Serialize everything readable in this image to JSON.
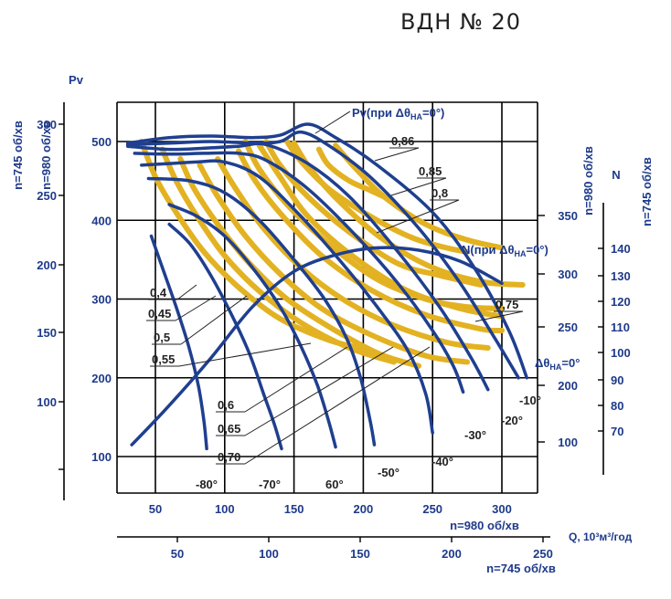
{
  "title": "ВДН  № 20",
  "colors": {
    "blue": "#1f3f8f",
    "yellow": "#e3b222",
    "grid": "#000000"
  },
  "chart_data": {
    "type": "line",
    "title": "ВДН  № 20",
    "axes": {
      "x_main": {
        "label": "n=980 об/хв",
        "ticks": [
          50,
          100,
          150,
          200,
          250,
          300
        ],
        "range": [
          25,
          320
        ]
      },
      "x_second": {
        "label": "n=745 об/хв",
        "ticks": [
          50,
          100,
          150,
          200,
          250
        ],
        "range": [
          25,
          250
        ]
      },
      "x_unit": "Q, 10³м³/год",
      "y_pv_980": {
        "label": "n=980 об/хв",
        "ticks": [
          100,
          200,
          300,
          400,
          500
        ],
        "range": [
          50,
          550
        ]
      },
      "y_pv_745": {
        "label": "n=745 об/хв",
        "ticks": [
          100,
          150,
          200,
          250,
          300
        ]
      },
      "pv_title": "Pv",
      "y_n_980": {
        "label": "n=980 об/хв",
        "ticks": [
          100,
          200,
          250,
          300,
          350
        ]
      },
      "y_n_745": {
        "label": "n=745 об/хв",
        "ticks": [
          70,
          80,
          90,
          100,
          110,
          120,
          130,
          140
        ]
      },
      "n_title": "N",
      "grid": true
    },
    "annotations": {
      "pv_curve": "Pv(при Δθ",
      "n_curve": "N(при Δθ",
      "subscript": "НА",
      "suffix": "=0°)",
      "angle_label": "Δθ",
      "angle_sub": "НА",
      "angle_suffix": "=0°"
    },
    "efficiency_labels": [
      "0,86",
      "0,85",
      "0,8",
      "0,75",
      "0,4",
      "0,45",
      "0,5",
      "0,55",
      "0,6",
      "0,65",
      "0,70"
    ],
    "angle_labels": [
      "-10°",
      "-20°",
      "-30°",
      "-40°",
      "-50°",
      "60°",
      "-70°",
      "-80°"
    ],
    "pressure_curves": [
      {
        "name": "0°",
        "points": [
          [
            30,
            498
          ],
          [
            60,
            505
          ],
          [
            90,
            507
          ],
          [
            120,
            505
          ],
          [
            140,
            508
          ],
          [
            160,
            522
          ],
          [
            180,
            505
          ],
          [
            210,
            470
          ],
          [
            250,
            410
          ],
          [
            280,
            340
          ],
          [
            305,
            260
          ],
          [
            318,
            200
          ]
        ]
      },
      {
        "name": "-10°",
        "points": [
          [
            30,
            496
          ],
          [
            60,
            498
          ],
          [
            90,
            500
          ],
          [
            120,
            498
          ],
          [
            140,
            500
          ],
          [
            155,
            512
          ],
          [
            175,
            495
          ],
          [
            205,
            455
          ],
          [
            240,
            390
          ],
          [
            270,
            320
          ],
          [
            295,
            250
          ],
          [
            312,
            200
          ]
        ]
      },
      {
        "name": "-20°",
        "points": [
          [
            30,
            494
          ],
          [
            60,
            490
          ],
          [
            90,
            492
          ],
          [
            110,
            494
          ],
          [
            130,
            496
          ],
          [
            160,
            472
          ],
          [
            190,
            430
          ],
          [
            225,
            360
          ],
          [
            255,
            290
          ],
          [
            278,
            225
          ],
          [
            290,
            185
          ]
        ]
      },
      {
        "name": "-30°",
        "points": [
          [
            35,
            485
          ],
          [
            60,
            484
          ],
          [
            85,
            485
          ],
          [
            110,
            485
          ],
          [
            130,
            476
          ],
          [
            160,
            440
          ],
          [
            195,
            380
          ],
          [
            225,
            320
          ],
          [
            250,
            260
          ],
          [
            265,
            215
          ],
          [
            272,
            182
          ]
        ]
      },
      {
        "name": "-40°",
        "points": [
          [
            40,
            470
          ],
          [
            60,
            472
          ],
          [
            80,
            474
          ],
          [
            100,
            474
          ],
          [
            125,
            455
          ],
          [
            155,
            405
          ],
          [
            185,
            345
          ],
          [
            210,
            290
          ],
          [
            232,
            235
          ],
          [
            245,
            180
          ],
          [
            250,
            130
          ]
        ]
      },
      {
        "name": "-50°",
        "points": [
          [
            45,
            453
          ],
          [
            75,
            450
          ],
          [
            100,
            435
          ],
          [
            125,
            400
          ],
          [
            150,
            350
          ],
          [
            172,
            300
          ],
          [
            188,
            250
          ],
          [
            198,
            200
          ],
          [
            205,
            145
          ],
          [
            208,
            115
          ]
        ]
      },
      {
        "name": "60°",
        "points": [
          [
            60,
            420
          ],
          [
            80,
            405
          ],
          [
            100,
            380
          ],
          [
            120,
            340
          ],
          [
            140,
            290
          ],
          [
            155,
            240
          ],
          [
            167,
            190
          ],
          [
            175,
            145
          ],
          [
            180,
            112
          ]
        ]
      },
      {
        "name": "-70°",
        "points": [
          [
            60,
            395
          ],
          [
            75,
            370
          ],
          [
            90,
            330
          ],
          [
            105,
            280
          ],
          [
            118,
            230
          ],
          [
            128,
            180
          ],
          [
            136,
            140
          ],
          [
            141,
            110
          ]
        ]
      },
      {
        "name": "-80°",
        "points": [
          [
            47,
            380
          ],
          [
            55,
            340
          ],
          [
            65,
            290
          ],
          [
            74,
            240
          ],
          [
            81,
            190
          ],
          [
            85,
            145
          ],
          [
            87,
            110
          ]
        ]
      }
    ],
    "power_curve": {
      "name": "N(при Δθ=0°)",
      "points": [
        [
          33,
          115
        ],
        [
          60,
          165
        ],
        [
          90,
          225
        ],
        [
          120,
          290
        ],
        [
          150,
          335
        ],
        [
          180,
          356
        ],
        [
          210,
          365
        ],
        [
          240,
          362
        ],
        [
          270,
          348
        ],
        [
          300,
          320
        ]
      ]
    },
    "efficiency_curves": [
      {
        "name": "0,86",
        "points": [
          [
            168,
            490
          ],
          [
            175,
            470
          ],
          [
            190,
            450
          ],
          [
            205,
            438
          ],
          [
            215,
            430
          ]
        ]
      },
      {
        "name": "0,85",
        "points": [
          [
            145,
            500
          ],
          [
            155,
            475
          ],
          [
            175,
            440
          ],
          [
            205,
            405
          ],
          [
            235,
            378
          ],
          [
            260,
            365
          ],
          [
            275,
            360
          ]
        ]
      },
      {
        "name": "0,8",
        "points": [
          [
            130,
            500
          ],
          [
            140,
            470
          ],
          [
            160,
            430
          ],
          [
            190,
            385
          ],
          [
            225,
            345
          ],
          [
            255,
            330
          ],
          [
            285,
            318
          ]
        ]
      },
      {
        "name": "0,75",
        "points": [
          [
            115,
            500
          ],
          [
            125,
            465
          ],
          [
            145,
            420
          ],
          [
            175,
            370
          ],
          [
            210,
            325
          ],
          [
            245,
            300
          ],
          [
            275,
            290
          ],
          [
            300,
            288
          ]
        ]
      },
      {
        "name": "0,4",
        "points": [
          [
            40,
            500
          ],
          [
            50,
            455
          ],
          [
            65,
            410
          ],
          [
            85,
            360
          ],
          [
            110,
            315
          ],
          [
            140,
            275
          ],
          [
            175,
            248
          ],
          [
            205,
            235
          ]
        ]
      },
      {
        "name": "0,45",
        "points": [
          [
            55,
            490
          ],
          [
            65,
            450
          ],
          [
            80,
            405
          ],
          [
            100,
            355
          ],
          [
            125,
            310
          ],
          [
            155,
            270
          ],
          [
            190,
            238
          ],
          [
            222,
            220
          ]
        ]
      },
      {
        "name": "0,5",
        "points": [
          [
            68,
            478
          ],
          [
            78,
            440
          ],
          [
            95,
            395
          ],
          [
            118,
            345
          ],
          [
            145,
            300
          ],
          [
            178,
            262
          ],
          [
            212,
            230
          ],
          [
            240,
            215
          ]
        ]
      },
      {
        "name": "0,55",
        "points": [
          [
            82,
            470
          ],
          [
            95,
            430
          ],
          [
            115,
            380
          ],
          [
            140,
            332
          ],
          [
            170,
            288
          ],
          [
            205,
            255
          ],
          [
            245,
            228
          ],
          [
            275,
            220
          ]
        ]
      },
      {
        "name": "0,6",
        "points": [
          [
            95,
            478
          ],
          [
            108,
            440
          ],
          [
            128,
            390
          ],
          [
            155,
            340
          ],
          [
            185,
            300
          ],
          [
            220,
            268
          ],
          [
            260,
            245
          ],
          [
            290,
            238
          ]
        ]
      },
      {
        "name": "0,65",
        "points": [
          [
            110,
            488
          ],
          [
            122,
            450
          ],
          [
            142,
            405
          ],
          [
            170,
            355
          ],
          [
            205,
            312
          ],
          [
            245,
            280
          ],
          [
            285,
            262
          ],
          [
            300,
            260
          ]
        ]
      },
      {
        "name": "0,70",
        "points": [
          [
            125,
            495
          ],
          [
            140,
            455
          ],
          [
            160,
            405
          ],
          [
            192,
            355
          ],
          [
            230,
            312
          ],
          [
            270,
            288
          ],
          [
            300,
            278
          ]
        ]
      },
      {
        "name": "0,75b",
        "points": [
          [
            150,
            498
          ],
          [
            162,
            465
          ],
          [
            185,
            420
          ],
          [
            215,
            375
          ],
          [
            250,
            340
          ],
          [
            285,
            322
          ],
          [
            315,
            318
          ]
        ]
      },
      {
        "name": "0,85b",
        "points": [
          [
            180,
            495
          ],
          [
            195,
            465
          ],
          [
            215,
            430
          ],
          [
            245,
            395
          ],
          [
            275,
            375
          ],
          [
            300,
            365
          ]
        ]
      }
    ]
  }
}
